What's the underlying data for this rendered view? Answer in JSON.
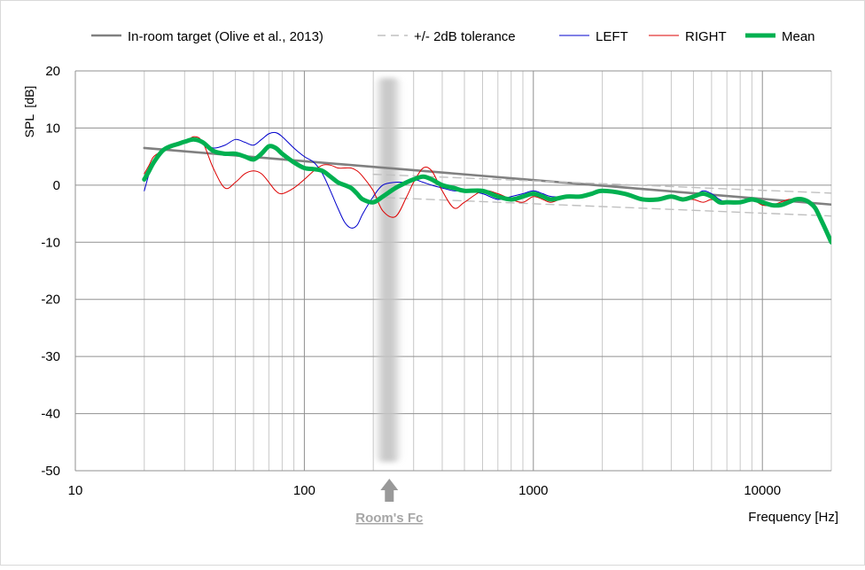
{
  "chart_data": {
    "type": "line",
    "xlabel": "Frequency [Hz]",
    "ylabel": "SPL  [dB]",
    "x_scale": "log",
    "xlim": [
      10,
      20000
    ],
    "ylim": [
      -50,
      20
    ],
    "x_ticks": [
      "10",
      "100",
      "1000",
      "10000"
    ],
    "y_ticks": [
      "20",
      "10",
      "0",
      "-10",
      "-20",
      "-30",
      "-40",
      "-50"
    ],
    "grid": true,
    "legend_position": "top",
    "annotation": {
      "label": "Room's Fc",
      "x": 235,
      "band": [
        200,
        270
      ]
    },
    "series": [
      {
        "name": "In-room target (Olive et al., 2013)",
        "color": "#808080",
        "style": "solid",
        "x": [
          20,
          20000
        ],
        "y": [
          6.5,
          -3.4
        ]
      },
      {
        "name": "+/- 2dB tolerance",
        "color": "#c0c0c0",
        "style": "dashed",
        "x": [
          200,
          20000
        ],
        "y": [
          1.9,
          -1.4
        ]
      },
      {
        "name": "",
        "color": "#c0c0c0",
        "style": "dashed",
        "x": [
          200,
          20000
        ],
        "y": [
          -2.1,
          -5.4
        ]
      },
      {
        "name": "LEFT",
        "color": "#0000cc",
        "style": "solid",
        "x": [
          20,
          21,
          22,
          24,
          26,
          28,
          30,
          33,
          36,
          40,
          45,
          50,
          55,
          60,
          65,
          70,
          75,
          80,
          90,
          100,
          110,
          120,
          130,
          140,
          150,
          160,
          170,
          180,
          200,
          220,
          250,
          280,
          300,
          330,
          360,
          400,
          450,
          500,
          600,
          700,
          800,
          900,
          1000,
          1100,
          1200,
          1400,
          1600,
          1800,
          2000,
          2500,
          3000,
          3500,
          4000,
          4500,
          5000,
          5500,
          6000,
          6500,
          7000,
          8000,
          9000,
          10000,
          11000,
          12000,
          13000,
          14000,
          15000,
          16000,
          17000,
          18000,
          19000,
          20000
        ],
        "y": [
          -1,
          2,
          4,
          6,
          7,
          7.5,
          7.8,
          8,
          7.5,
          6.5,
          7,
          8,
          7.5,
          7,
          8,
          9,
          9.2,
          8.5,
          6.5,
          5,
          4,
          2,
          -1,
          -4,
          -6.5,
          -7.5,
          -7,
          -5,
          -2,
          0,
          0.5,
          0.5,
          1,
          0.5,
          0,
          -0.5,
          -1,
          -1,
          -1.5,
          -2.5,
          -2,
          -1.5,
          -1,
          -1.5,
          -2,
          -2,
          -2,
          -1.5,
          -1,
          -1.5,
          -2.5,
          -2.5,
          -2,
          -2.5,
          -2,
          -1,
          -1.5,
          -2.5,
          -3,
          -3,
          -2.5,
          -3,
          -3.5,
          -3.5,
          -3,
          -2.5,
          -2.5,
          -3,
          -4,
          -6,
          -8,
          -10
        ]
      },
      {
        "name": "RIGHT",
        "color": "#dd0000",
        "style": "solid",
        "x": [
          20,
          21,
          22,
          24,
          26,
          28,
          30,
          33,
          36,
          40,
          45,
          50,
          55,
          60,
          65,
          70,
          75,
          80,
          90,
          100,
          110,
          120,
          130,
          140,
          150,
          160,
          170,
          180,
          200,
          220,
          250,
          280,
          300,
          330,
          360,
          400,
          450,
          500,
          600,
          700,
          800,
          900,
          1000,
          1100,
          1200,
          1400,
          1600,
          1800,
          2000,
          2500,
          3000,
          3500,
          4000,
          4500,
          5000,
          5500,
          6000,
          6500,
          7000,
          8000,
          9000,
          10000,
          11000,
          12000,
          13000,
          14000,
          15000,
          16000,
          17000,
          18000,
          19000,
          20000
        ],
        "y": [
          2,
          3.5,
          5,
          6,
          6.5,
          7,
          7.5,
          8.5,
          7.5,
          3,
          -0.5,
          0.5,
          2,
          2.5,
          2,
          0.5,
          -1,
          -1.5,
          -0.5,
          1,
          2.5,
          3.5,
          3.5,
          3,
          3,
          3,
          2.5,
          1.5,
          -1,
          -4.5,
          -5.5,
          -2,
          0.5,
          3,
          2.5,
          -1,
          -4,
          -3,
          -1,
          -1.5,
          -2.5,
          -3,
          -2,
          -2.5,
          -3,
          -2,
          -2,
          -1.5,
          -1,
          -1.5,
          -2.5,
          -2.5,
          -2,
          -2.5,
          -2.5,
          -3,
          -2.5,
          -3,
          -3,
          -3,
          -2.5,
          -3.5,
          -3.5,
          -3,
          -2.5,
          -2.5,
          -2.5,
          -3,
          -4,
          -6,
          -8,
          -10
        ]
      },
      {
        "name": "Mean",
        "color": "#00b050",
        "style": "solid",
        "x": [
          20,
          21,
          22,
          24,
          26,
          28,
          30,
          33,
          36,
          40,
          45,
          50,
          55,
          60,
          65,
          70,
          75,
          80,
          90,
          100,
          110,
          120,
          130,
          140,
          150,
          160,
          170,
          180,
          200,
          220,
          250,
          280,
          300,
          330,
          360,
          400,
          450,
          500,
          600,
          700,
          800,
          900,
          1000,
          1100,
          1200,
          1400,
          1600,
          1800,
          2000,
          2500,
          3000,
          3500,
          4000,
          4500,
          5000,
          5500,
          6000,
          6500,
          7000,
          8000,
          9000,
          10000,
          11000,
          12000,
          13000,
          14000,
          15000,
          16000,
          17000,
          18000,
          19000,
          20000
        ],
        "y": [
          1,
          2.5,
          4,
          6,
          6.8,
          7.2,
          7.6,
          8,
          7.5,
          6,
          5.5,
          5.5,
          5,
          4.5,
          5.5,
          6.8,
          6.5,
          5.5,
          4,
          3,
          2.8,
          2.5,
          1.5,
          0.5,
          0,
          -0.5,
          -1.5,
          -2.5,
          -3,
          -2,
          -0.5,
          0.5,
          1,
          1.5,
          1,
          0,
          -0.5,
          -1,
          -1,
          -2,
          -2.5,
          -2,
          -1.5,
          -2,
          -2.5,
          -2,
          -2,
          -1.5,
          -1,
          -1.5,
          -2.5,
          -2.5,
          -2,
          -2.5,
          -2,
          -1.5,
          -2,
          -3,
          -3,
          -3,
          -2.5,
          -3,
          -3.5,
          -3.5,
          -3,
          -2.5,
          -2.5,
          -3,
          -4,
          -6,
          -8,
          -10
        ]
      }
    ]
  }
}
